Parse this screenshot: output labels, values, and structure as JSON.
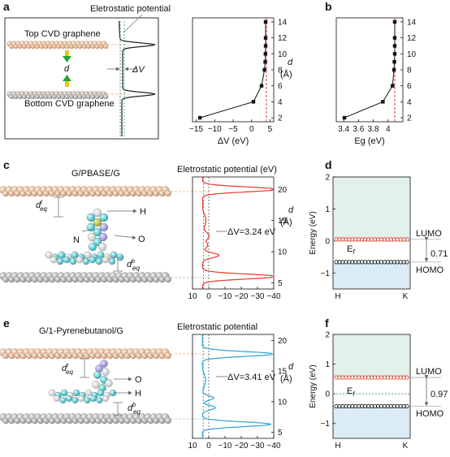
{
  "panel_labels": {
    "a": "a",
    "b": "b",
    "c": "c",
    "d": "d",
    "e": "e",
    "f": "f"
  },
  "panel_a": {
    "potential_title": "Eletrostatic potential",
    "top_label": "Top CVD graphene",
    "bottom_label": "Bottom CVD graphene",
    "d_label": "d",
    "dv_label": "ΔV"
  },
  "panel_c": {
    "title": "G/PBASE/G",
    "potential_title": "Eletrostatic potential (eV)",
    "dv_text": "ΔV=3.24 eV",
    "atoms": {
      "h": "H",
      "n": "N",
      "o": "O"
    },
    "dteq": {
      "base": "d",
      "sup": "t",
      "sub": "eq"
    },
    "dbeq": {
      "base": "d",
      "sup": "b",
      "sub": "eq"
    }
  },
  "panel_e": {
    "title": "G/1-Pyrenebutanol/G",
    "potential_title": "Eletrostatic potential",
    "dv_text": "ΔV=3.41 eV",
    "atoms": {
      "h": "H",
      "o": "O"
    },
    "dteq": {
      "base": "d",
      "sup": "t",
      "sub": "eq"
    },
    "dbeq": {
      "base": "d",
      "sup": "b",
      "sub": "eq"
    }
  },
  "d_unit": {
    "d": "d",
    "unit": "(Å)"
  },
  "panel_d": {
    "ylabel": "Energy (eV)",
    "lumo": "LUMO",
    "homo": "HOMO",
    "gap": "0.71",
    "ef": {
      "base": "E",
      "sub": "f"
    },
    "xticks": [
      "H",
      "K"
    ],
    "yticks": [
      "2",
      "1",
      "0",
      "−1"
    ]
  },
  "panel_f": {
    "ylabel": "Energy (eV)",
    "lumo": "LUMO",
    "homo": "HOMO",
    "gap": "0.97",
    "ef": {
      "base": "E",
      "sub": "f"
    },
    "xticks": [
      "H",
      "K"
    ],
    "yticks": [
      "2",
      "1",
      "0",
      "−1"
    ]
  },
  "chart_data": [
    {
      "type": "line",
      "panel": "a-middle",
      "xlabel": "ΔV (eV)",
      "ylabel": "d (Å)",
      "xlim": [
        -16,
        6
      ],
      "ylim": [
        1.5,
        14.5
      ],
      "xticks": [
        -15,
        -10,
        -5,
        0,
        5
      ],
      "yticks": [
        2,
        4,
        6,
        8,
        10,
        12,
        14
      ],
      "x": [
        -14,
        0.5,
        2.7,
        3.5,
        3.7,
        3.75,
        3.8,
        3.8,
        3.8
      ],
      "y": [
        2,
        4,
        6,
        8,
        9,
        10,
        11,
        12,
        14
      ],
      "reference_line_x": 4.0
    },
    {
      "type": "line",
      "panel": "b",
      "xlabel": "Eg (eV)",
      "ylabel": "",
      "xlim": [
        3.3,
        4.2
      ],
      "ylim": [
        1.5,
        14.5
      ],
      "xticks": [
        3.4,
        3.6,
        3.8,
        4.0
      ],
      "yticks": [
        2,
        4,
        6,
        8,
        10,
        12,
        14
      ],
      "x": [
        3.41,
        3.93,
        4.06,
        4.08,
        4.085,
        4.09,
        4.09,
        4.09,
        4.09
      ],
      "y": [
        2,
        4,
        6,
        8,
        9,
        10,
        11,
        12,
        14
      ],
      "reference_line_x": 4.09
    },
    {
      "type": "line",
      "panel": "c-potential",
      "xlabel": "",
      "ylabel": "d (Å)",
      "xlim": [
        10,
        -40
      ],
      "ylim": [
        4,
        22
      ],
      "xticks": [
        10,
        0,
        -10,
        -20,
        -30,
        -40
      ],
      "yticks": [
        5,
        10,
        15,
        20
      ],
      "reference_x": 0,
      "vacuum_level": 3.24
    },
    {
      "type": "line",
      "panel": "e-potential",
      "xlabel": "",
      "ylabel": "d (Å)",
      "xlim": [
        10,
        -40
      ],
      "ylim": [
        4,
        21
      ],
      "xticks": [
        10,
        0,
        -10,
        -20,
        -30,
        -40
      ],
      "yticks": [
        5,
        10,
        15,
        20
      ],
      "reference_x": 0,
      "vacuum_level": 3.41
    },
    {
      "type": "scatter",
      "panel": "d",
      "ylabel": "Energy (eV)",
      "ylim": [
        -1.5,
        2
      ],
      "yticks": [
        2,
        1,
        0,
        -1
      ],
      "xticks": [
        "H",
        "K"
      ],
      "lumo": 0.05,
      "homo": -0.66,
      "gap": 0.71
    },
    {
      "type": "scatter",
      "panel": "f",
      "ylabel": "Energy (eV)",
      "ylim": [
        -1.5,
        2
      ],
      "yticks": [
        2,
        1,
        0,
        -1
      ],
      "xticks": [
        "H",
        "K"
      ],
      "lumo": 0.55,
      "homo": -0.42,
      "gap": 0.97
    }
  ]
}
